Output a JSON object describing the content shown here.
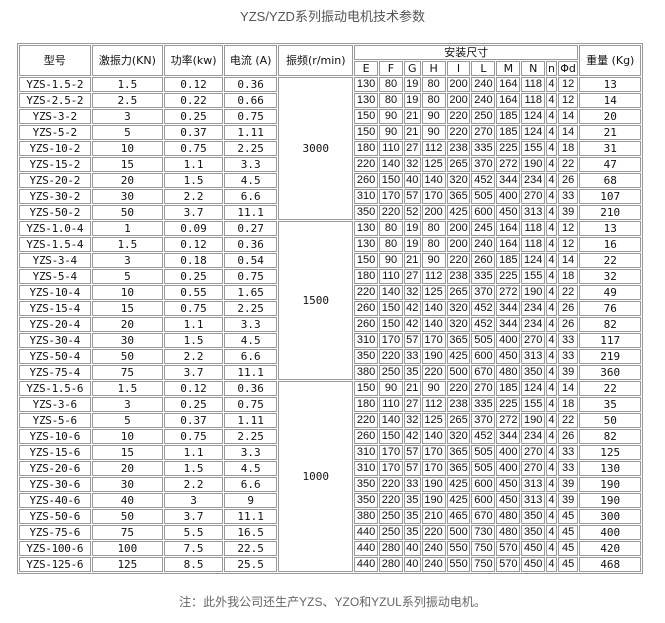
{
  "title": "YZS/YZD系列振动电机技术参数",
  "header": {
    "model": "型号",
    "force": "激振力(KN)",
    "power": "功率(kw)",
    "current": "电流 (A)",
    "frequency": "振频(r/min)",
    "install_size": "安装尺寸",
    "weight": "重量 (Kg)",
    "dims": [
      "E",
      "F",
      "G",
      "H",
      "I",
      "L",
      "M",
      "N",
      "n",
      "Φd"
    ]
  },
  "groups": [
    {
      "freq": "3000",
      "rows": [
        [
          "YZS-1.5-2",
          "1.5",
          "0.12",
          "0.36",
          "130",
          "80",
          "19",
          "80",
          "200",
          "240",
          "164",
          "118",
          "4",
          "12",
          "13"
        ],
        [
          "YZS-2.5-2",
          "2.5",
          "0.22",
          "0.66",
          "130",
          "80",
          "19",
          "80",
          "200",
          "240",
          "164",
          "118",
          "4",
          "12",
          "14"
        ],
        [
          "YZS-3-2",
          "3",
          "0.25",
          "0.75",
          "150",
          "90",
          "21",
          "90",
          "220",
          "250",
          "185",
          "124",
          "4",
          "14",
          "20"
        ],
        [
          "YZS-5-2",
          "5",
          "0.37",
          "1.11",
          "150",
          "90",
          "21",
          "90",
          "220",
          "270",
          "185",
          "124",
          "4",
          "14",
          "21"
        ],
        [
          "YZS-10-2",
          "10",
          "0.75",
          "2.25",
          "180",
          "110",
          "27",
          "112",
          "238",
          "335",
          "225",
          "155",
          "4",
          "18",
          "31"
        ],
        [
          "YZS-15-2",
          "15",
          "1.1",
          "3.3",
          "220",
          "140",
          "32",
          "125",
          "265",
          "370",
          "272",
          "190",
          "4",
          "22",
          "47"
        ],
        [
          "YZS-20-2",
          "20",
          "1.5",
          "4.5",
          "260",
          "150",
          "40",
          "140",
          "320",
          "452",
          "344",
          "234",
          "4",
          "26",
          "68"
        ],
        [
          "YZS-30-2",
          "30",
          "2.2",
          "6.6",
          "310",
          "170",
          "57",
          "170",
          "365",
          "505",
          "400",
          "270",
          "4",
          "33",
          "107"
        ],
        [
          "YZS-50-2",
          "50",
          "3.7",
          "11.1",
          "350",
          "220",
          "52",
          "200",
          "425",
          "600",
          "450",
          "313",
          "4",
          "39",
          "210"
        ]
      ]
    },
    {
      "freq": "1500",
      "rows": [
        [
          "YZS-1.0-4",
          "1",
          "0.09",
          "0.27",
          "130",
          "80",
          "19",
          "80",
          "200",
          "245",
          "164",
          "118",
          "4",
          "12",
          "13"
        ],
        [
          "YZS-1.5-4",
          "1.5",
          "0.12",
          "0.36",
          "130",
          "80",
          "19",
          "80",
          "200",
          "240",
          "164",
          "118",
          "4",
          "12",
          "16"
        ],
        [
          "YZS-3-4",
          "3",
          "0.18",
          "0.54",
          "150",
          "90",
          "21",
          "90",
          "220",
          "260",
          "185",
          "124",
          "4",
          "14",
          "22"
        ],
        [
          "YZS-5-4",
          "5",
          "0.25",
          "0.75",
          "180",
          "110",
          "27",
          "112",
          "238",
          "335",
          "225",
          "155",
          "4",
          "18",
          "32"
        ],
        [
          "YZS-10-4",
          "10",
          "0.55",
          "1.65",
          "220",
          "140",
          "32",
          "125",
          "265",
          "370",
          "272",
          "190",
          "4",
          "22",
          "49"
        ],
        [
          "YZS-15-4",
          "15",
          "0.75",
          "2.25",
          "260",
          "150",
          "42",
          "140",
          "320",
          "452",
          "344",
          "234",
          "4",
          "26",
          "76"
        ],
        [
          "YZS-20-4",
          "20",
          "1.1",
          "3.3",
          "260",
          "150",
          "42",
          "140",
          "320",
          "452",
          "344",
          "234",
          "4",
          "26",
          "82"
        ],
        [
          "YZS-30-4",
          "30",
          "1.5",
          "4.5",
          "310",
          "170",
          "57",
          "170",
          "365",
          "505",
          "400",
          "270",
          "4",
          "33",
          "117"
        ],
        [
          "YZS-50-4",
          "50",
          "2.2",
          "6.6",
          "350",
          "220",
          "33",
          "190",
          "425",
          "600",
          "450",
          "313",
          "4",
          "33",
          "219"
        ],
        [
          "YZS-75-4",
          "75",
          "3.7",
          "11.1",
          "380",
          "250",
          "35",
          "220",
          "500",
          "670",
          "480",
          "350",
          "4",
          "39",
          "360"
        ]
      ]
    },
    {
      "freq": "1000",
      "rows": [
        [
          "YZS-1.5-6",
          "1.5",
          "0.12",
          "0.36",
          "150",
          "90",
          "21",
          "90",
          "220",
          "270",
          "185",
          "124",
          "4",
          "14",
          "22"
        ],
        [
          "YZS-3-6",
          "3",
          "0.25",
          "0.75",
          "180",
          "110",
          "27",
          "112",
          "238",
          "335",
          "225",
          "155",
          "4",
          "18",
          "35"
        ],
        [
          "YZS-5-6",
          "5",
          "0.37",
          "1.11",
          "220",
          "140",
          "32",
          "125",
          "265",
          "370",
          "272",
          "190",
          "4",
          "22",
          "50"
        ],
        [
          "YZS-10-6",
          "10",
          "0.75",
          "2.25",
          "260",
          "150",
          "42",
          "140",
          "320",
          "452",
          "344",
          "234",
          "4",
          "26",
          "82"
        ],
        [
          "YZS-15-6",
          "15",
          "1.1",
          "3.3",
          "310",
          "170",
          "57",
          "170",
          "365",
          "505",
          "400",
          "270",
          "4",
          "33",
          "125"
        ],
        [
          "YZS-20-6",
          "20",
          "1.5",
          "4.5",
          "310",
          "170",
          "57",
          "170",
          "365",
          "505",
          "400",
          "270",
          "4",
          "33",
          "130"
        ],
        [
          "YZS-30-6",
          "30",
          "2.2",
          "6.6",
          "350",
          "220",
          "33",
          "190",
          "425",
          "600",
          "450",
          "313",
          "4",
          "39",
          "190"
        ],
        [
          "YZS-40-6",
          "40",
          "3",
          "9",
          "350",
          "220",
          "35",
          "190",
          "425",
          "600",
          "450",
          "313",
          "4",
          "39",
          "190"
        ],
        [
          "YZS-50-6",
          "50",
          "3.7",
          "11.1",
          "380",
          "250",
          "35",
          "210",
          "465",
          "670",
          "480",
          "350",
          "4",
          "45",
          "300"
        ],
        [
          "YZS-75-6",
          "75",
          "5.5",
          "16.5",
          "440",
          "250",
          "35",
          "220",
          "500",
          "730",
          "480",
          "350",
          "4",
          "45",
          "400"
        ],
        [
          "YZS-100-6",
          "100",
          "7.5",
          "22.5",
          "440",
          "280",
          "40",
          "240",
          "550",
          "750",
          "570",
          "450",
          "4",
          "45",
          "420"
        ],
        [
          "YZS-125-6",
          "125",
          "8.5",
          "25.5",
          "440",
          "280",
          "40",
          "240",
          "550",
          "750",
          "570",
          "450",
          "4",
          "45",
          "468"
        ]
      ]
    }
  ],
  "note": "注：此外我公司还生产YZS、YZO和YZUL系列振动电机。"
}
